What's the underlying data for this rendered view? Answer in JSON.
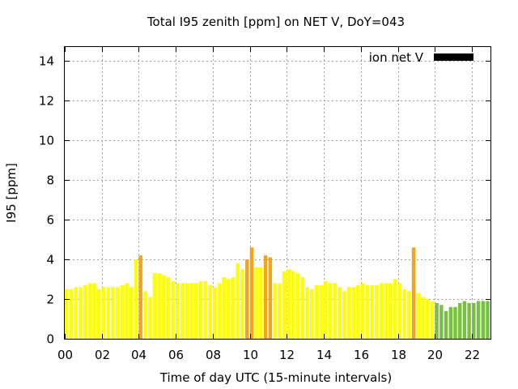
{
  "chart_data": {
    "type": "bar",
    "title": "Total I95 zenith [ppm] on NET V, DoY=043",
    "xlabel": "Time of day UTC (15-minute intervals)",
    "ylabel": "I95 [ppm]",
    "xlim": [
      0,
      23
    ],
    "ylim": [
      0,
      14.7
    ],
    "x_ticks": [
      0,
      2,
      4,
      6,
      8,
      10,
      12,
      14,
      16,
      18,
      20,
      22
    ],
    "x_tick_labels": [
      "00",
      "02",
      "04",
      "06",
      "08",
      "10",
      "12",
      "14",
      "16",
      "18",
      "20",
      "22"
    ],
    "y_ticks": [
      0,
      2,
      4,
      6,
      8,
      10,
      12,
      14
    ],
    "y_tick_labels": [
      "0",
      "2",
      "4",
      "6",
      "8",
      "10",
      "12",
      "14"
    ],
    "grid": true,
    "legend": {
      "label": "ion net V",
      "color": "#000000",
      "placement": "top-right"
    },
    "colors": {
      "normal": "#ffff00",
      "elevated": "#f5a31a",
      "late": "#7ac143"
    },
    "interval_hours": 0.25,
    "bars": [
      {
        "x": 0.0,
        "v": 2.5,
        "c": "normal"
      },
      {
        "x": 0.25,
        "v": 2.5,
        "c": "normal"
      },
      {
        "x": 0.5,
        "v": 2.6,
        "c": "normal"
      },
      {
        "x": 0.75,
        "v": 2.6,
        "c": "normal"
      },
      {
        "x": 1.0,
        "v": 2.7,
        "c": "normal"
      },
      {
        "x": 1.25,
        "v": 2.8,
        "c": "normal"
      },
      {
        "x": 1.5,
        "v": 2.8,
        "c": "normal"
      },
      {
        "x": 1.75,
        "v": 2.5,
        "c": "normal"
      },
      {
        "x": 2.0,
        "v": 2.6,
        "c": "normal"
      },
      {
        "x": 2.25,
        "v": 2.6,
        "c": "normal"
      },
      {
        "x": 2.5,
        "v": 2.6,
        "c": "normal"
      },
      {
        "x": 2.75,
        "v": 2.6,
        "c": "normal"
      },
      {
        "x": 3.0,
        "v": 2.7,
        "c": "normal"
      },
      {
        "x": 3.25,
        "v": 2.8,
        "c": "normal"
      },
      {
        "x": 3.5,
        "v": 2.6,
        "c": "normal"
      },
      {
        "x": 3.75,
        "v": 4.0,
        "c": "normal"
      },
      {
        "x": 4.0,
        "v": 4.2,
        "c": "elevated"
      },
      {
        "x": 4.25,
        "v": 2.4,
        "c": "normal"
      },
      {
        "x": 4.5,
        "v": 2.1,
        "c": "normal"
      },
      {
        "x": 4.75,
        "v": 3.3,
        "c": "normal"
      },
      {
        "x": 5.0,
        "v": 3.3,
        "c": "normal"
      },
      {
        "x": 5.25,
        "v": 3.2,
        "c": "normal"
      },
      {
        "x": 5.5,
        "v": 3.1,
        "c": "normal"
      },
      {
        "x": 5.75,
        "v": 2.9,
        "c": "normal"
      },
      {
        "x": 6.0,
        "v": 2.8,
        "c": "normal"
      },
      {
        "x": 6.25,
        "v": 2.8,
        "c": "normal"
      },
      {
        "x": 6.5,
        "v": 2.8,
        "c": "normal"
      },
      {
        "x": 6.75,
        "v": 2.8,
        "c": "normal"
      },
      {
        "x": 7.0,
        "v": 2.8,
        "c": "normal"
      },
      {
        "x": 7.25,
        "v": 2.9,
        "c": "normal"
      },
      {
        "x": 7.5,
        "v": 2.9,
        "c": "normal"
      },
      {
        "x": 7.75,
        "v": 2.7,
        "c": "normal"
      },
      {
        "x": 8.0,
        "v": 2.6,
        "c": "normal"
      },
      {
        "x": 8.25,
        "v": 2.8,
        "c": "normal"
      },
      {
        "x": 8.5,
        "v": 3.1,
        "c": "normal"
      },
      {
        "x": 8.75,
        "v": 3.0,
        "c": "normal"
      },
      {
        "x": 9.0,
        "v": 3.1,
        "c": "normal"
      },
      {
        "x": 9.25,
        "v": 3.8,
        "c": "normal"
      },
      {
        "x": 9.5,
        "v": 3.5,
        "c": "normal"
      },
      {
        "x": 9.75,
        "v": 4.0,
        "c": "elevated"
      },
      {
        "x": 10.0,
        "v": 4.6,
        "c": "elevated"
      },
      {
        "x": 10.25,
        "v": 3.6,
        "c": "normal"
      },
      {
        "x": 10.5,
        "v": 3.6,
        "c": "normal"
      },
      {
        "x": 10.75,
        "v": 4.2,
        "c": "elevated"
      },
      {
        "x": 11.0,
        "v": 4.1,
        "c": "elevated"
      },
      {
        "x": 11.25,
        "v": 2.8,
        "c": "normal"
      },
      {
        "x": 11.5,
        "v": 2.8,
        "c": "normal"
      },
      {
        "x": 11.75,
        "v": 3.4,
        "c": "normal"
      },
      {
        "x": 12.0,
        "v": 3.5,
        "c": "normal"
      },
      {
        "x": 12.25,
        "v": 3.4,
        "c": "normal"
      },
      {
        "x": 12.5,
        "v": 3.3,
        "c": "normal"
      },
      {
        "x": 12.75,
        "v": 3.1,
        "c": "normal"
      },
      {
        "x": 13.0,
        "v": 2.6,
        "c": "normal"
      },
      {
        "x": 13.25,
        "v": 2.5,
        "c": "normal"
      },
      {
        "x": 13.5,
        "v": 2.7,
        "c": "normal"
      },
      {
        "x": 13.75,
        "v": 2.7,
        "c": "normal"
      },
      {
        "x": 14.0,
        "v": 2.9,
        "c": "normal"
      },
      {
        "x": 14.25,
        "v": 2.8,
        "c": "normal"
      },
      {
        "x": 14.5,
        "v": 2.8,
        "c": "normal"
      },
      {
        "x": 14.75,
        "v": 2.6,
        "c": "normal"
      },
      {
        "x": 15.0,
        "v": 2.4,
        "c": "normal"
      },
      {
        "x": 15.25,
        "v": 2.6,
        "c": "normal"
      },
      {
        "x": 15.5,
        "v": 2.6,
        "c": "normal"
      },
      {
        "x": 15.75,
        "v": 2.7,
        "c": "normal"
      },
      {
        "x": 16.0,
        "v": 2.8,
        "c": "normal"
      },
      {
        "x": 16.25,
        "v": 2.7,
        "c": "normal"
      },
      {
        "x": 16.5,
        "v": 2.7,
        "c": "normal"
      },
      {
        "x": 16.75,
        "v": 2.7,
        "c": "normal"
      },
      {
        "x": 17.0,
        "v": 2.8,
        "c": "normal"
      },
      {
        "x": 17.25,
        "v": 2.8,
        "c": "normal"
      },
      {
        "x": 17.5,
        "v": 2.8,
        "c": "normal"
      },
      {
        "x": 17.75,
        "v": 3.0,
        "c": "normal"
      },
      {
        "x": 18.0,
        "v": 2.8,
        "c": "normal"
      },
      {
        "x": 18.25,
        "v": 2.5,
        "c": "normal"
      },
      {
        "x": 18.5,
        "v": 2.4,
        "c": "normal"
      },
      {
        "x": 18.75,
        "v": 4.6,
        "c": "elevated"
      },
      {
        "x": 19.0,
        "v": 2.3,
        "c": "normal"
      },
      {
        "x": 19.25,
        "v": 2.1,
        "c": "normal"
      },
      {
        "x": 19.5,
        "v": 2.0,
        "c": "normal"
      },
      {
        "x": 19.75,
        "v": 1.9,
        "c": "normal"
      },
      {
        "x": 20.0,
        "v": 1.8,
        "c": "late"
      },
      {
        "x": 20.25,
        "v": 1.7,
        "c": "late"
      },
      {
        "x": 20.5,
        "v": 1.4,
        "c": "late"
      },
      {
        "x": 20.75,
        "v": 1.6,
        "c": "late"
      },
      {
        "x": 21.0,
        "v": 1.6,
        "c": "late"
      },
      {
        "x": 21.25,
        "v": 1.8,
        "c": "late"
      },
      {
        "x": 21.5,
        "v": 1.9,
        "c": "late"
      },
      {
        "x": 21.75,
        "v": 1.8,
        "c": "late"
      },
      {
        "x": 22.0,
        "v": 1.8,
        "c": "late"
      },
      {
        "x": 22.25,
        "v": 1.9,
        "c": "late"
      },
      {
        "x": 22.5,
        "v": 1.9,
        "c": "late"
      },
      {
        "x": 22.75,
        "v": 1.9,
        "c": "late"
      }
    ]
  }
}
